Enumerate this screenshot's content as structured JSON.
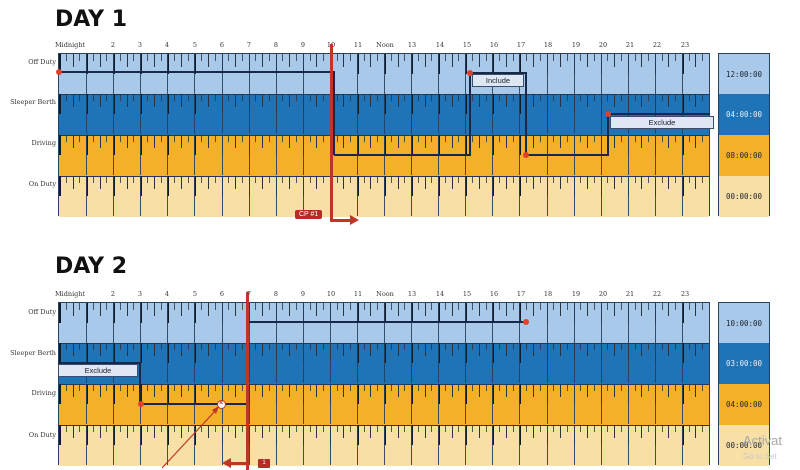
{
  "hours": [
    "Midnight",
    "2",
    "3",
    "4",
    "5",
    "6",
    "7",
    "8",
    "9",
    "10",
    "11",
    "Noon",
    "13",
    "14",
    "15",
    "16",
    "17",
    "18",
    "19",
    "20",
    "21",
    "22",
    "23"
  ],
  "rows": [
    "Off Duty",
    "Sleeper Berth",
    "Driving",
    "On Duty"
  ],
  "day1": {
    "title": "DAY 1",
    "totals": [
      "12:00:00",
      "04:00:00",
      "08:00:00",
      "00:00:00"
    ],
    "include_label": "Include",
    "exclude_label": "Exclude",
    "cp_label": "CP #1"
  },
  "day2": {
    "title": "DAY 2",
    "totals": [
      "10:00:00",
      "03:00:00",
      "04:00:00",
      "00:00:00"
    ],
    "exclude_label": "Exclude",
    "badge_label": "1"
  },
  "overlay": {
    "activate_text": "Activat",
    "settings_text": "Go to Set"
  },
  "colors": {
    "off_duty": "#a9c9ea",
    "sleeper_berth": "#1f73b7",
    "driving": "#f5b02a",
    "on_duty": "#f7dfa6",
    "trace": "#17284a",
    "marker": "#c0342a"
  }
}
